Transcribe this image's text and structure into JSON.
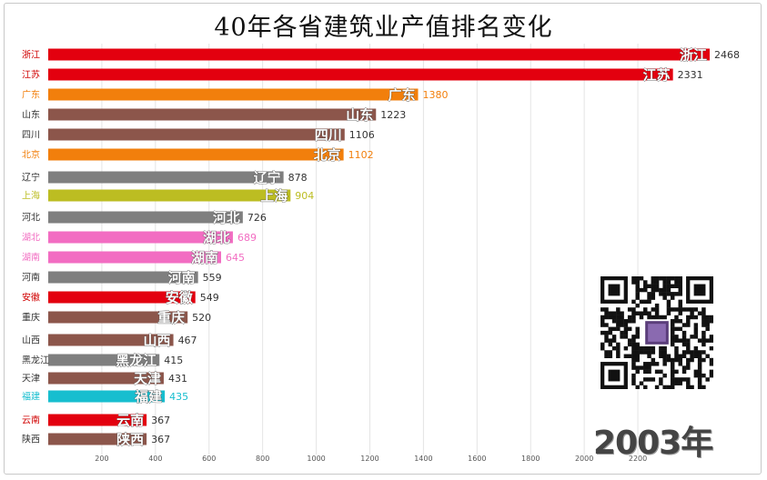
{
  "chart_data": {
    "type": "bar",
    "orientation": "horizontal",
    "title": "40年各省建筑业产值排名变化",
    "year_label": "2003年",
    "categories": [
      "浙江",
      "江苏",
      "广东",
      "山东",
      "四川",
      "北京",
      "辽宁",
      "上海",
      "河北",
      "湖北",
      "湖南",
      "河南",
      "安徽",
      "重庆",
      "山西",
      "黑龙江",
      "天津",
      "福建",
      "云南",
      "陕西"
    ],
    "values": [
      2468,
      2331,
      1380,
      1223,
      1106,
      1102,
      878,
      904,
      726,
      689,
      645,
      559,
      549,
      520,
      467,
      415,
      431,
      435,
      367,
      367
    ],
    "colors": [
      "#e3000f",
      "#e3000f",
      "#f27f0c",
      "#8c564b",
      "#8c564b",
      "#f27f0c",
      "#7f7f7f",
      "#bcbd22",
      "#7f7f7f",
      "#f26dc2",
      "#f26dc2",
      "#7f7f7f",
      "#e3000f",
      "#8c564b",
      "#8c564b",
      "#7f7f7f",
      "#8c564b",
      "#17becf",
      "#e3000f",
      "#8c564b"
    ],
    "label_colors": [
      "#d00000",
      "#d00000",
      "#f27f0c",
      "#333333",
      "#333333",
      "#f27f0c",
      "#333333",
      "#bcbd22",
      "#333333",
      "#f26dc2",
      "#f26dc2",
      "#333333",
      "#d00000",
      "#333333",
      "#333333",
      "#333333",
      "#333333",
      "#17becf",
      "#d00000",
      "#333333"
    ],
    "x_ticks": [
      200,
      400,
      600,
      800,
      1000,
      1200,
      1400,
      1600,
      1800,
      2000,
      2200
    ],
    "xlim": [
      0,
      2468
    ],
    "grid": true
  }
}
